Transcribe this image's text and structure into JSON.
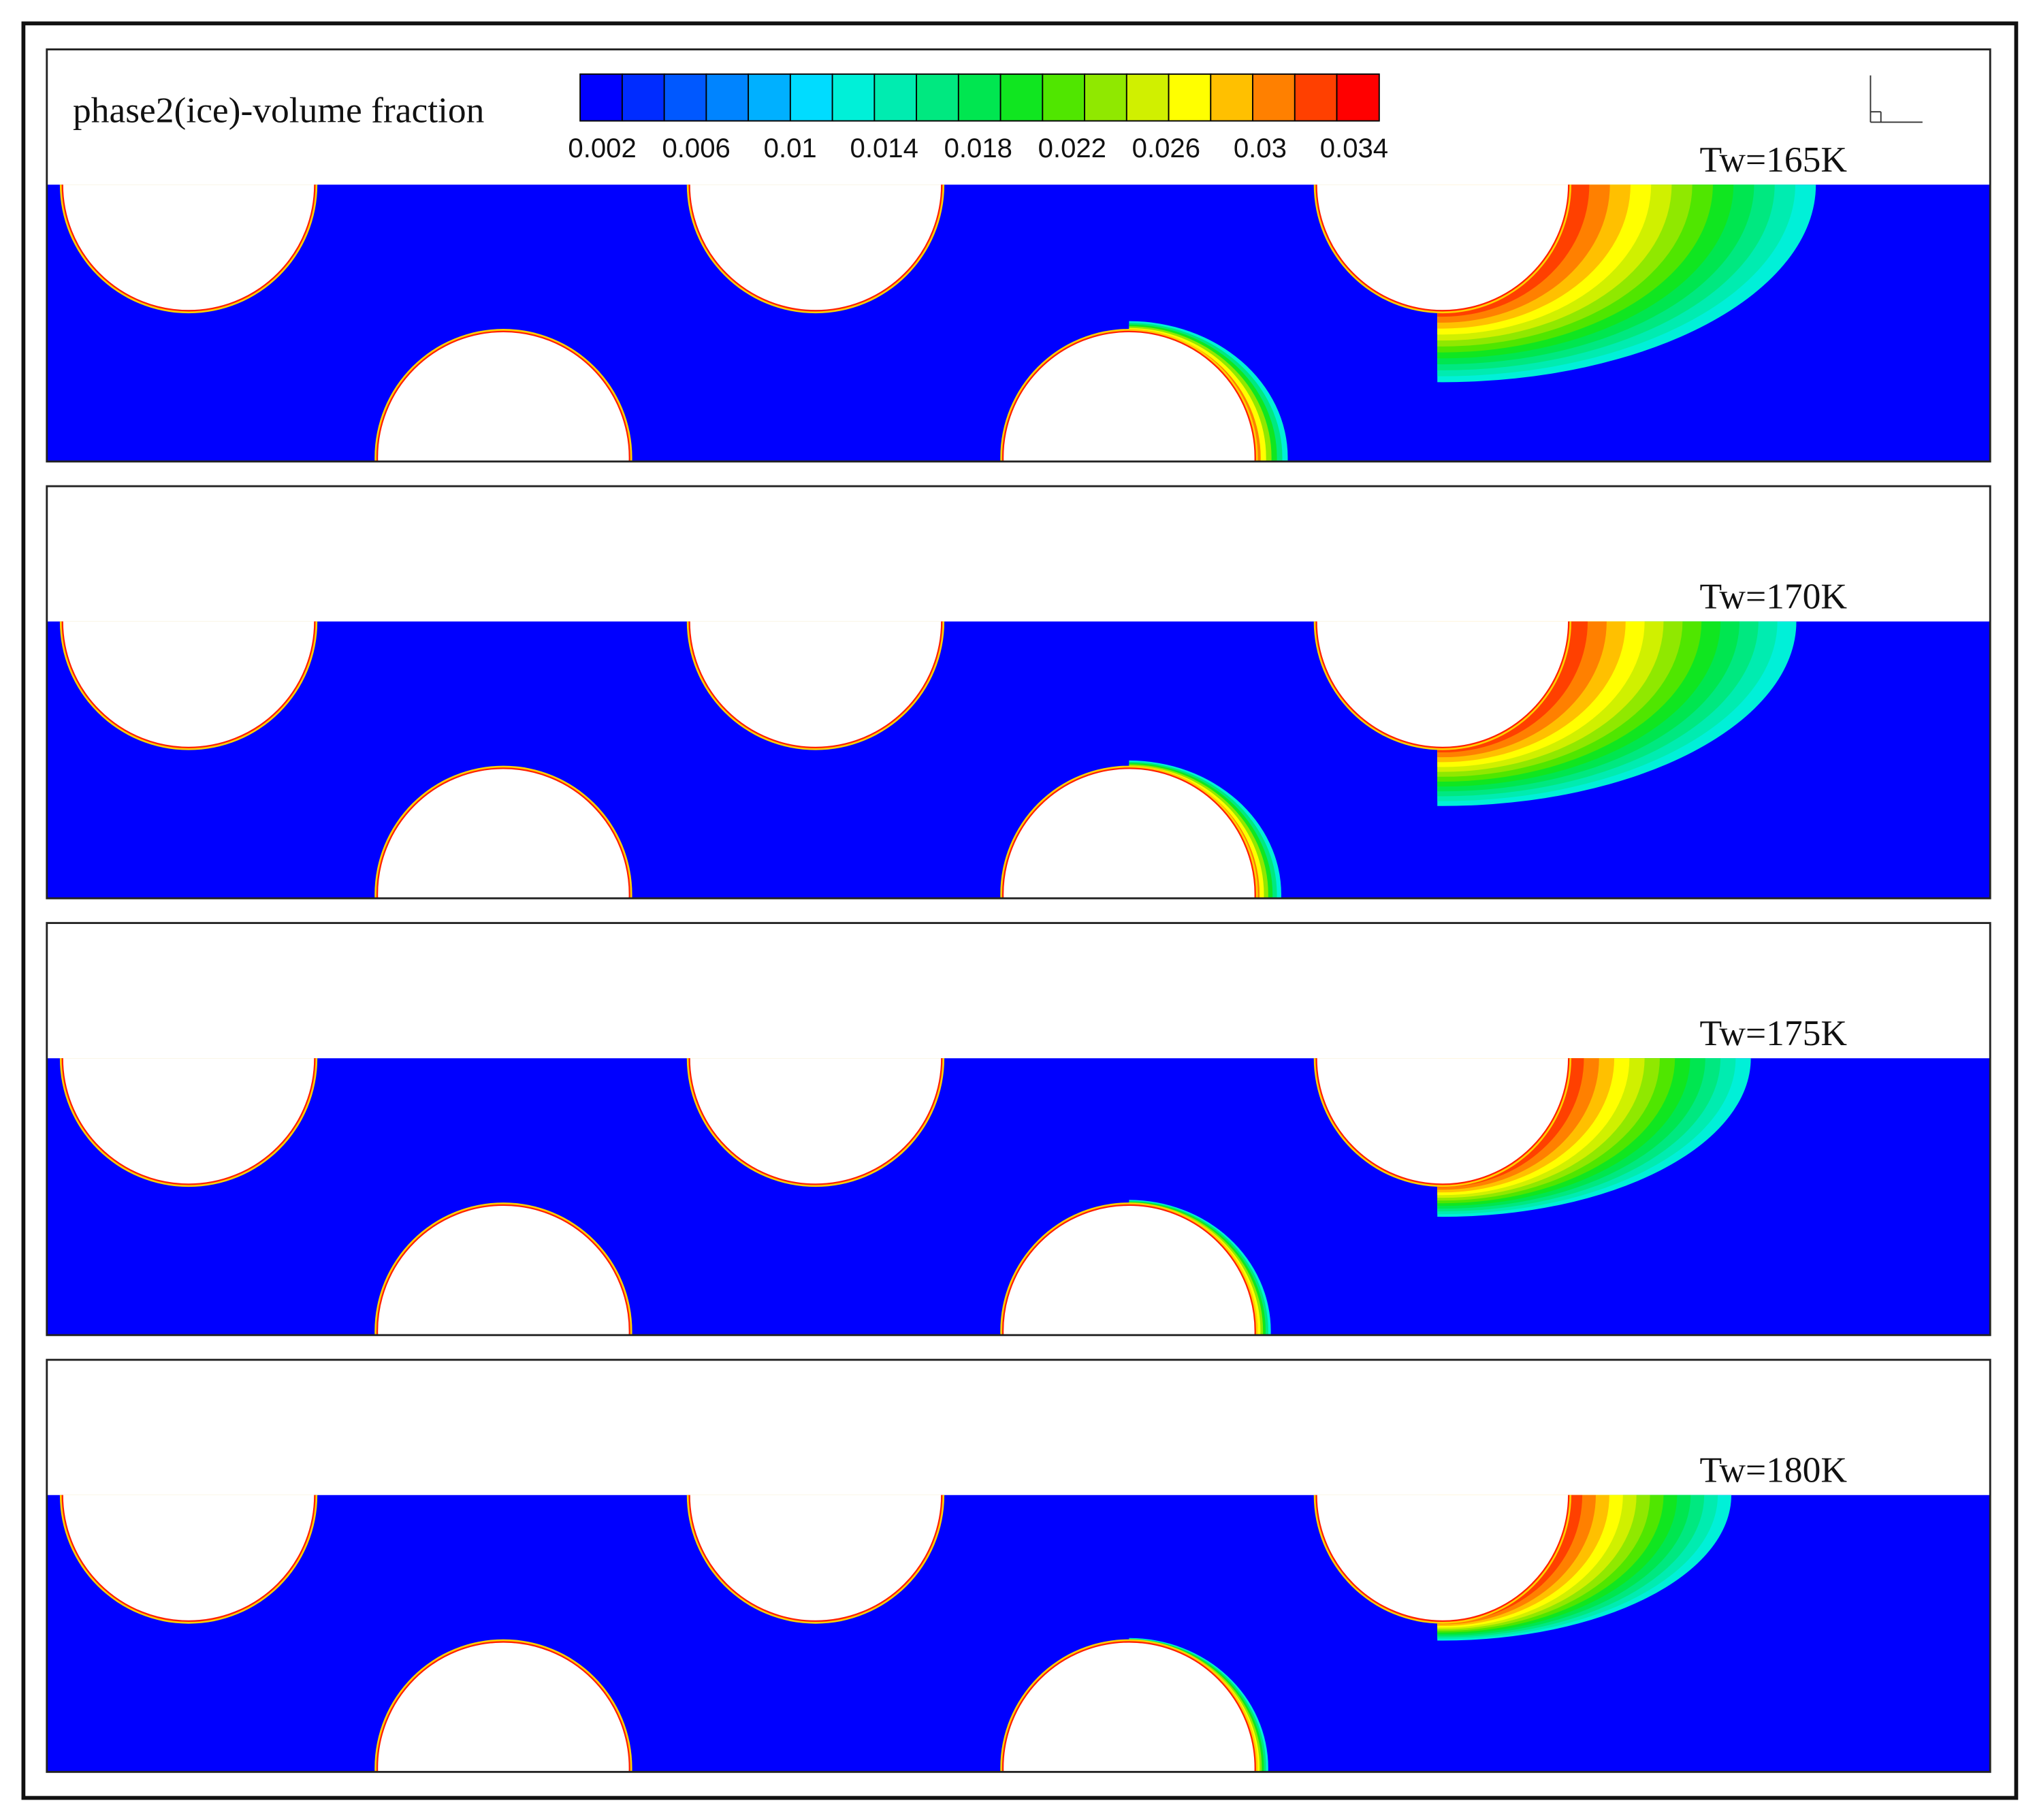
{
  "legend": {
    "title": "phase2(ice)-volume fraction",
    "ticks": [
      0.002,
      0.006,
      0.01,
      0.014,
      0.018,
      0.022,
      0.026,
      0.03,
      0.034
    ],
    "colors": [
      "#0000ff",
      "#002cff",
      "#0058ff",
      "#0084ff",
      "#00b0ff",
      "#00dcff",
      "#00f0d8",
      "#00ecb0",
      "#00e880",
      "#00e650",
      "#10e620",
      "#50e600",
      "#90e800",
      "#d0f000",
      "#ffff00",
      "#ffc000",
      "#ff8000",
      "#ff4000",
      "#ff0000"
    ]
  },
  "panels": [
    {
      "label": "Tw=165K"
    },
    {
      "label": "Tw=170K"
    },
    {
      "label": "Tw=175K"
    },
    {
      "label": "Tw=180K"
    }
  ]
}
